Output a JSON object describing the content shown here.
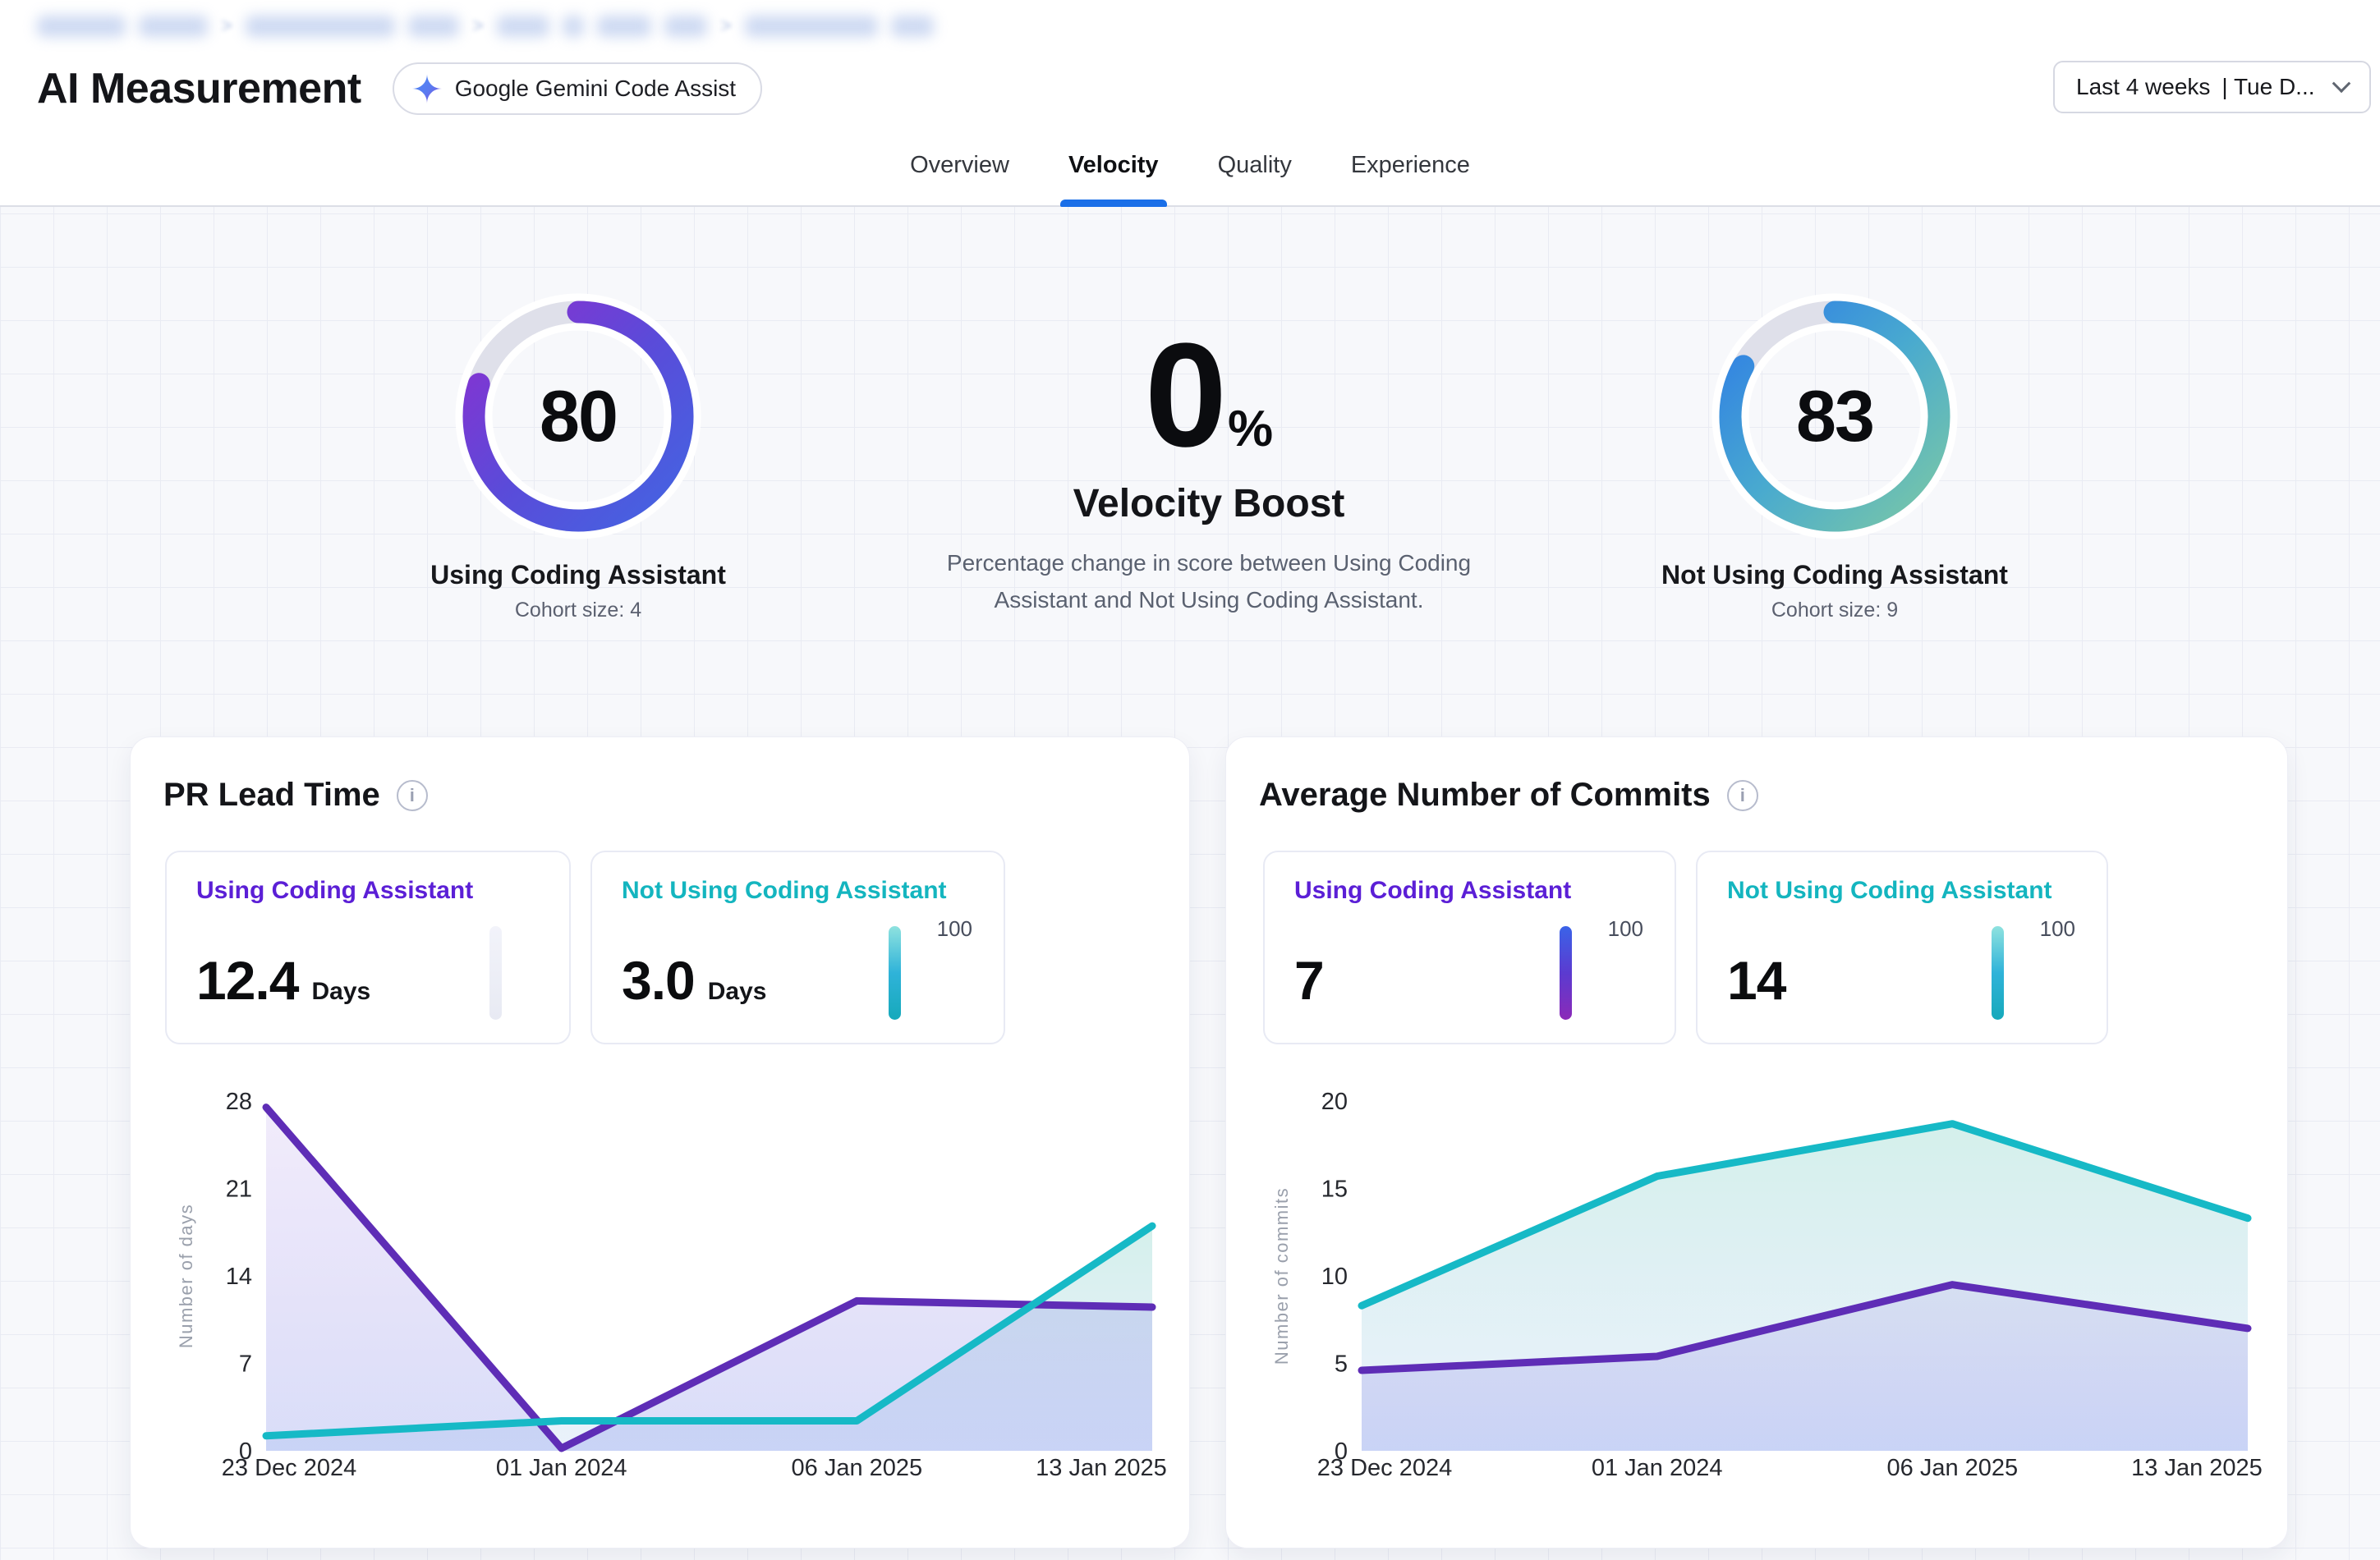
{
  "header": {
    "breadcrumb": {
      "redacted": true,
      "segments": 4
    },
    "title": "AI Measurement",
    "badge": {
      "label": "Google Gemini Code Assist",
      "icon": "gemini-sparkle-icon"
    },
    "date_filter": {
      "range": "Last 4 weeks",
      "compare": "| Tue D...",
      "icon": "chevron-down-icon"
    }
  },
  "tabs": [
    {
      "label": "Overview",
      "active": false
    },
    {
      "label": "Velocity",
      "active": true
    },
    {
      "label": "Quality",
      "active": false
    },
    {
      "label": "Experience",
      "active": false
    }
  ],
  "colors": {
    "accent_blue": "#1a6fe8",
    "purple": "#5b1fd6",
    "teal": "#14b5bf"
  },
  "summary": {
    "left_gauge": {
      "value": "80",
      "percent": 80,
      "label": "Using Coding Assistant",
      "cohort": "Cohort size: 4",
      "gradient": [
        "#8c2fd0",
        "#5a4bd9",
        "#4365e2"
      ],
      "track": "#dfe0ea"
    },
    "boost": {
      "value": "0",
      "unit": "%",
      "title": "Velocity Boost",
      "description": "Percentage change in score between Using Coding Assistant and Not Using Coding Assistant."
    },
    "right_gauge": {
      "value": "83",
      "percent": 83,
      "label": "Not Using Coding Assistant",
      "cohort": "Cohort size: 9",
      "gradient": [
        "#2e7ce6",
        "#49aacf",
        "#7bc8a6"
      ],
      "track": "#dfe0ea"
    }
  },
  "cards": [
    {
      "title": "PR Lead Time",
      "stats": [
        {
          "label": "Using Coding Assistant",
          "value": "12.4",
          "unit": "Days",
          "color": "#5b1fd6",
          "bar_gradient": [
            "#f2f3fa",
            "#e8eaf3"
          ],
          "max_label": ""
        },
        {
          "label": "Not Using Coding Assistant",
          "value": "3.0",
          "unit": "Days",
          "color": "#14b5bf",
          "bar_gradient": [
            "#8fe2df",
            "#2fb3d9",
            "#16a9bb"
          ],
          "max_label": "100"
        }
      ],
      "chart_data": {
        "type": "area",
        "x": [
          "23 Dec 2024",
          "01 Jan 2024",
          "06 Jan 2025",
          "13 Jan 2025"
        ],
        "series": [
          {
            "name": "Not Using Coding Assistant",
            "color": "#16b9c6",
            "values": [
              1.2,
              2.4,
              2.4,
              18
            ],
            "area_gradient": [
              "rgba(84,196,176,0.25)",
              "rgba(140,180,235,0.18)"
            ]
          },
          {
            "name": "Using Coding Assistant",
            "color": "#5e2db6",
            "values": [
              27.5,
              0.2,
              12,
              11.5
            ],
            "area_gradient": [
              "rgba(120,70,215,0.10)",
              "rgba(95,115,228,0.24)"
            ]
          }
        ],
        "ylabel": "Number of days",
        "yticks": [
          0,
          7,
          14,
          21,
          28
        ],
        "ylim": [
          0,
          28
        ],
        "grid": false,
        "legend": "none"
      }
    },
    {
      "title": "Average Number of Commits",
      "stats": [
        {
          "label": "Using Coding Assistant",
          "value": "7",
          "unit": "",
          "color": "#5b1fd6",
          "bar_gradient": [
            "#3a63e8",
            "#5b3bd0",
            "#8b2ab8"
          ],
          "max_label": "100"
        },
        {
          "label": "Not Using Coding Assistant",
          "value": "14",
          "unit": "",
          "color": "#14b5bf",
          "bar_gradient": [
            "#8fe2df",
            "#2fb3d9",
            "#16a9bb"
          ],
          "max_label": "100"
        }
      ],
      "chart_data": {
        "type": "area",
        "x": [
          "23 Dec 2024",
          "01 Jan 2024",
          "06 Jan 2025",
          "13 Jan 2025"
        ],
        "series": [
          {
            "name": "Not Using Coding Assistant",
            "color": "#16b9c6",
            "values": [
              8.3,
              15.7,
              18.7,
              13.3
            ],
            "area_gradient": [
              "rgba(84,196,176,0.25)",
              "rgba(140,180,235,0.18)"
            ]
          },
          {
            "name": "Using Coding Assistant",
            "color": "#5e2db6",
            "values": [
              4.6,
              5.4,
              9.5,
              7.0
            ],
            "area_gradient": [
              "rgba(120,70,215,0.10)",
              "rgba(95,115,228,0.24)"
            ]
          }
        ],
        "ylabel": "Number of commits",
        "yticks": [
          0,
          5,
          10,
          15,
          20
        ],
        "ylim": [
          0,
          20
        ],
        "grid": false,
        "legend": "none"
      }
    }
  ]
}
